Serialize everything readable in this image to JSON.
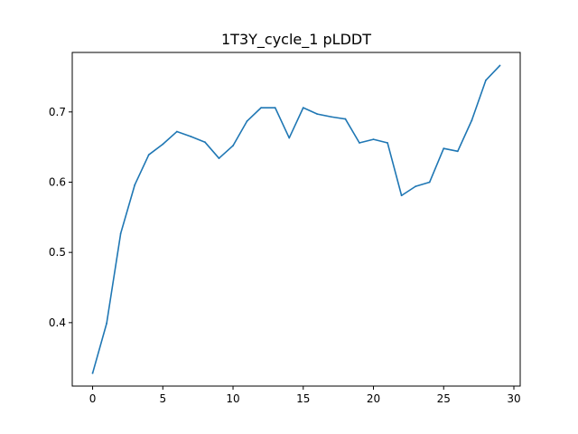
{
  "chart_data": {
    "type": "line",
    "title": "1T3Y_cycle_1 pLDDT",
    "xlabel": "",
    "ylabel": "",
    "xlim": [
      -1.45,
      30.45
    ],
    "ylim": [
      0.3097,
      0.7847
    ],
    "grid": false,
    "x_ticks": [
      0,
      5,
      10,
      15,
      20,
      25,
      30
    ],
    "y_ticks": [
      0.4,
      0.5,
      0.6,
      0.7
    ],
    "series": [
      {
        "color": "#1f77b4",
        "x": [
          0,
          1,
          2,
          3,
          4,
          5,
          6,
          7,
          8,
          9,
          10,
          11,
          12,
          13,
          14,
          15,
          16,
          17,
          18,
          19,
          20,
          21,
          22,
          23,
          24,
          25,
          26,
          27,
          28,
          29
        ],
        "y": [
          0.328,
          0.399,
          0.527,
          0.596,
          0.639,
          0.654,
          0.672,
          0.665,
          0.657,
          0.634,
          0.652,
          0.687,
          0.706,
          0.706,
          0.663,
          0.706,
          0.697,
          0.693,
          0.69,
          0.656,
          0.661,
          0.656,
          0.581,
          0.594,
          0.6,
          0.648,
          0.644,
          0.688,
          0.745,
          0.766
        ]
      }
    ]
  }
}
